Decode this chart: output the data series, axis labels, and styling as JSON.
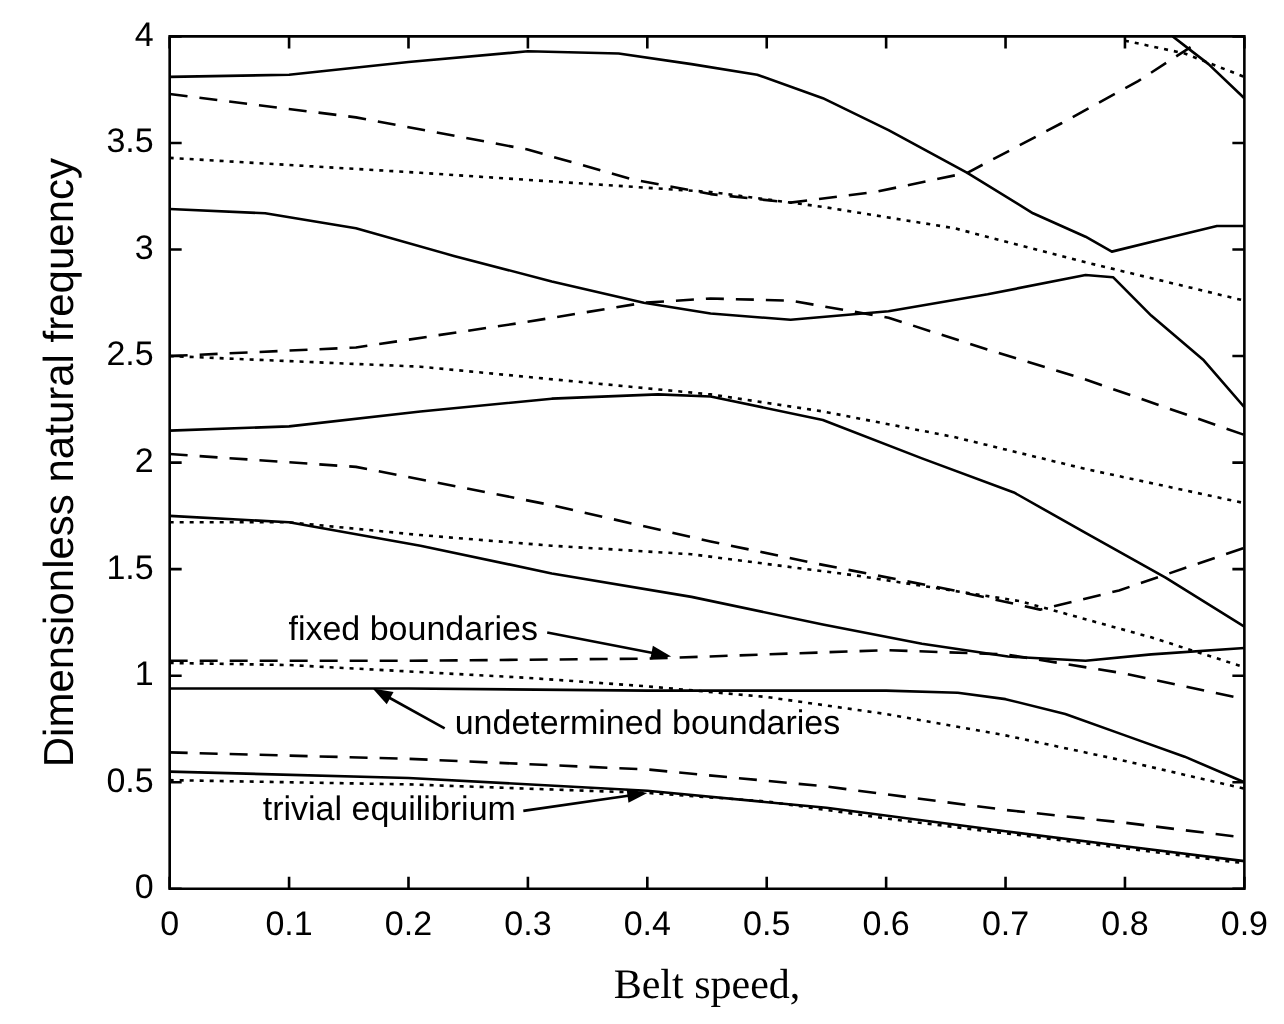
{
  "chart_data": {
    "type": "line",
    "xlabel": "Belt speed,",
    "ylabel": "Dimensionless natural frequency",
    "xlim": [
      0,
      0.9
    ],
    "ylim": [
      0,
      4
    ],
    "xticks": [
      0,
      0.1,
      0.2,
      0.3,
      0.4,
      0.5,
      0.6,
      0.7,
      0.8,
      0.9
    ],
    "yticks": [
      0,
      0.5,
      1,
      1.5,
      2,
      2.5,
      3,
      3.5,
      4
    ],
    "grid": false,
    "legend": false,
    "marker": "none",
    "annotations": [
      {
        "text": "fixed boundaries",
        "x": 0.42,
        "y": 1.09
      },
      {
        "text": "undetermined boundaries",
        "x": 0.17,
        "y": 0.94
      },
      {
        "text": "trivial equilibrium",
        "x": 0.4,
        "y": 0.45
      }
    ],
    "series": [
      {
        "line_style": "solid",
        "color": "#000000",
        "x": [
          0,
          0.1,
          0.2,
          0.3,
          0.376,
          0.437,
          0.492,
          0.547,
          0.602,
          0.668,
          0.723,
          0.767,
          0.789,
          0.833,
          0.877,
          0.9
        ],
        "values": [
          3.81,
          3.82,
          3.88,
          3.93,
          3.92,
          3.87,
          3.82,
          3.71,
          3.56,
          3.36,
          3.17,
          3.06,
          2.99,
          3.05,
          3.11,
          3.11
        ]
      },
      {
        "type": "line",
        "line_style": "solid",
        "color": "#000000",
        "x": [
          0.84,
          0.87,
          0.9
        ],
        "values": [
          4.0,
          3.87,
          3.71
        ]
      },
      {
        "type": "line",
        "line_style": "dashed",
        "color": "#000000",
        "x": [
          0,
          0.156,
          0.299,
          0.387,
          0.453,
          0.52,
          0.591,
          0.668,
          0.746,
          0.811,
          0.855
        ],
        "values": [
          3.73,
          3.62,
          3.47,
          3.33,
          3.26,
          3.22,
          3.27,
          3.36,
          3.59,
          3.79,
          3.95
        ]
      },
      {
        "type": "line",
        "line_style": "dotted",
        "color": "#000000",
        "x": [
          0.8,
          0.85,
          0.9
        ],
        "values": [
          3.98,
          3.92,
          3.81
        ]
      },
      {
        "type": "line",
        "line_style": "dotted",
        "color": "#000000",
        "x": [
          0,
          0.21,
          0.453,
          0.547,
          0.657,
          0.767,
          0.9
        ],
        "values": [
          3.43,
          3.36,
          3.27,
          3.2,
          3.1,
          2.94,
          2.76
        ]
      },
      {
        "type": "line",
        "line_style": "solid",
        "color": "#000000",
        "x": [
          0,
          0.08,
          0.156,
          0.238,
          0.32,
          0.397,
          0.453,
          0.52,
          0.602,
          0.685,
          0.767,
          0.79,
          0.822,
          0.866,
          0.9
        ],
        "values": [
          3.19,
          3.17,
          3.1,
          2.97,
          2.85,
          2.75,
          2.7,
          2.67,
          2.71,
          2.79,
          2.88,
          2.87,
          2.69,
          2.48,
          2.26
        ]
      },
      {
        "type": "line",
        "line_style": "dashed",
        "color": "#000000",
        "x": [
          0,
          0.156,
          0.299,
          0.397,
          0.453,
          0.52,
          0.602,
          0.685,
          0.767,
          0.9
        ],
        "values": [
          2.5,
          2.54,
          2.66,
          2.75,
          2.77,
          2.76,
          2.68,
          2.53,
          2.39,
          2.13
        ]
      },
      {
        "type": "line",
        "line_style": "dotted",
        "color": "#000000",
        "x": [
          0,
          0.21,
          0.453,
          0.547,
          0.657,
          0.767,
          0.9
        ],
        "values": [
          2.5,
          2.45,
          2.32,
          2.24,
          2.12,
          1.97,
          1.81
        ]
      },
      {
        "type": "line",
        "line_style": "solid",
        "color": "#000000",
        "x": [
          0,
          0.1,
          0.21,
          0.32,
          0.409,
          0.453,
          0.547,
          0.63,
          0.707,
          0.767,
          0.834,
          0.9
        ],
        "values": [
          2.15,
          2.17,
          2.24,
          2.3,
          2.32,
          2.31,
          2.2,
          2.02,
          1.86,
          1.67,
          1.46,
          1.23
        ]
      },
      {
        "type": "line",
        "line_style": "dashed",
        "color": "#000000",
        "x": [
          0,
          0.156,
          0.266,
          0.32,
          0.453,
          0.547,
          0.657,
          0.729,
          0.795,
          0.9
        ],
        "values": [
          2.04,
          1.98,
          1.86,
          1.8,
          1.63,
          1.52,
          1.4,
          1.31,
          1.4,
          1.6
        ]
      },
      {
        "type": "line",
        "line_style": "dotted",
        "color": "#000000",
        "x": [
          0,
          0.1,
          0.21,
          0.32,
          0.437,
          0.575,
          0.712,
          0.822,
          0.9
        ],
        "values": [
          1.72,
          1.72,
          1.66,
          1.61,
          1.57,
          1.47,
          1.35,
          1.18,
          1.04
        ]
      },
      {
        "type": "line",
        "line_style": "solid",
        "color": "#000000",
        "x": [
          0,
          0.1,
          0.21,
          0.32,
          0.437,
          0.547,
          0.63,
          0.702,
          0.767,
          0.822,
          0.9
        ],
        "values": [
          1.75,
          1.72,
          1.61,
          1.48,
          1.37,
          1.24,
          1.15,
          1.09,
          1.07,
          1.1,
          1.13
        ]
      },
      {
        "type": "line",
        "line_style": "dashed",
        "color": "#000000",
        "x": [
          0,
          0.2,
          0.4,
          0.5,
          0.6,
          0.7,
          0.8,
          0.9
        ],
        "values": [
          1.07,
          1.07,
          1.08,
          1.1,
          1.12,
          1.1,
          1.01,
          0.89
        ]
      },
      {
        "type": "line",
        "line_style": "dotted",
        "color": "#000000",
        "x": [
          0,
          0.1,
          0.2,
          0.3,
          0.4,
          0.5,
          0.6,
          0.7,
          0.8,
          0.9
        ],
        "values": [
          1.06,
          1.05,
          1.02,
          0.99,
          0.95,
          0.9,
          0.82,
          0.72,
          0.6,
          0.47
        ]
      },
      {
        "type": "line",
        "line_style": "solid",
        "color": "#000000",
        "x": [
          0,
          0.2,
          0.4,
          0.6,
          0.66,
          0.7,
          0.75,
          0.8,
          0.85,
          0.9
        ],
        "values": [
          0.94,
          0.94,
          0.93,
          0.93,
          0.92,
          0.89,
          0.82,
          0.72,
          0.62,
          0.5
        ]
      },
      {
        "type": "line",
        "line_style": "dashed",
        "color": "#000000",
        "x": [
          0,
          0.2,
          0.4,
          0.55,
          0.7,
          0.8,
          0.9
        ],
        "values": [
          0.64,
          0.61,
          0.56,
          0.48,
          0.37,
          0.31,
          0.24
        ]
      },
      {
        "type": "line",
        "line_style": "solid",
        "color": "#000000",
        "x": [
          0,
          0.2,
          0.4,
          0.55,
          0.7,
          0.8,
          0.9
        ],
        "values": [
          0.55,
          0.52,
          0.46,
          0.38,
          0.27,
          0.2,
          0.13
        ]
      },
      {
        "type": "line",
        "line_style": "dotted",
        "color": "#000000",
        "x": [
          0,
          0.1,
          0.2,
          0.3,
          0.4,
          0.5,
          0.6,
          0.7,
          0.8,
          0.9
        ],
        "values": [
          0.51,
          0.5,
          0.49,
          0.47,
          0.45,
          0.41,
          0.33,
          0.26,
          0.19,
          0.12
        ]
      }
    ]
  }
}
